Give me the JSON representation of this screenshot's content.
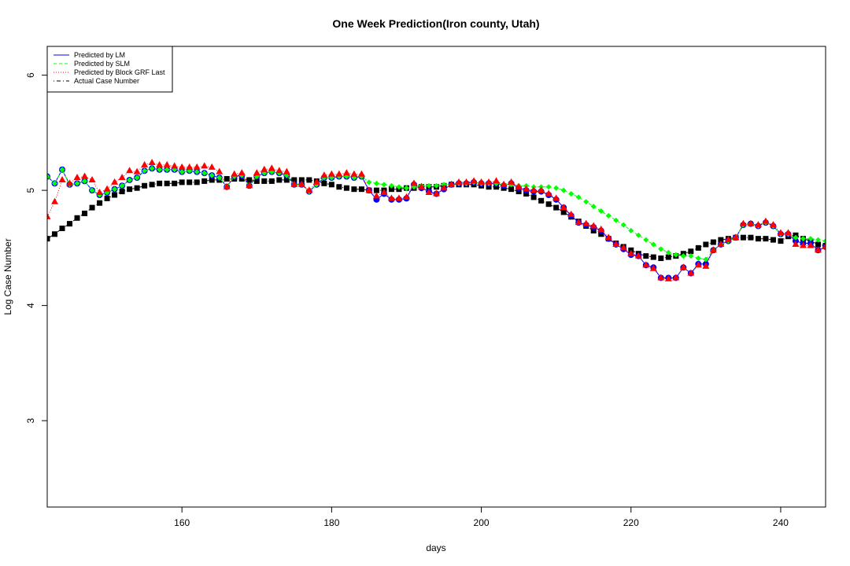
{
  "chart_data": {
    "type": "line",
    "title": "One Week Prediction(Iron county, Utah)",
    "xlabel": "days",
    "ylabel": "Log Case Number",
    "xlim": [
      142,
      246
    ],
    "ylim": [
      2.25,
      6.25
    ],
    "x_ticks": [
      160,
      180,
      200,
      220,
      240
    ],
    "y_ticks": [
      3,
      4,
      5,
      6
    ],
    "x_tick_labels": [
      "160",
      "180",
      "200",
      "220",
      "240"
    ],
    "y_tick_labels": [
      "3",
      "4",
      "5",
      "6"
    ],
    "legend_position": "top-left",
    "x_start": 142,
    "series": [
      {
        "name": "Predicted by LM",
        "color": "#0000ff",
        "marker": "circle",
        "line": "solid",
        "values": [
          5.12,
          5.06,
          5.18,
          5.05,
          5.06,
          5.08,
          5.0,
          4.96,
          4.98,
          5.01,
          5.04,
          5.09,
          5.11,
          5.17,
          5.19,
          5.18,
          5.18,
          5.18,
          5.16,
          5.17,
          5.16,
          5.15,
          5.13,
          5.11,
          5.03,
          5.12,
          5.13,
          5.04,
          5.12,
          5.15,
          5.16,
          5.15,
          5.13,
          5.05,
          5.05,
          4.99,
          5.05,
          5.11,
          5.11,
          5.12,
          5.12,
          5.11,
          5.12,
          5.0,
          4.92,
          4.97,
          4.92,
          4.92,
          4.93,
          5.05,
          5.02,
          4.99,
          4.97,
          5.01,
          5.05,
          5.06,
          5.06,
          5.07,
          5.06,
          5.06,
          5.06,
          5.04,
          5.06,
          5.02,
          5.0,
          4.99,
          4.99,
          4.96,
          4.92,
          4.85,
          4.78,
          4.72,
          4.7,
          4.68,
          4.65,
          4.58,
          4.53,
          4.49,
          4.44,
          4.43,
          4.35,
          4.33,
          4.24,
          4.24,
          4.24,
          4.33,
          4.28,
          4.36,
          4.36,
          4.48,
          4.53,
          4.56,
          4.59,
          4.7,
          4.71,
          4.69,
          4.72,
          4.69,
          4.62,
          4.62,
          4.56,
          4.54,
          4.54,
          4.48,
          4.51
        ]
      },
      {
        "name": "Predicted by SLM",
        "color": "#00ff00",
        "marker": "diamond",
        "line": "dashed",
        "values": [
          5.12,
          5.06,
          5.18,
          5.05,
          5.06,
          5.08,
          5.0,
          4.96,
          4.98,
          5.01,
          5.04,
          5.09,
          5.11,
          5.17,
          5.19,
          5.18,
          5.18,
          5.18,
          5.16,
          5.17,
          5.16,
          5.15,
          5.13,
          5.11,
          5.03,
          5.12,
          5.13,
          5.04,
          5.12,
          5.15,
          5.16,
          5.15,
          5.13,
          5.05,
          5.05,
          4.99,
          5.05,
          5.11,
          5.11,
          5.12,
          5.12,
          5.11,
          5.12,
          5.07,
          5.06,
          5.05,
          5.04,
          5.03,
          5.02,
          5.03,
          5.04,
          5.04,
          5.04,
          5.05,
          5.05,
          5.06,
          5.06,
          5.07,
          5.06,
          5.06,
          5.06,
          5.05,
          5.05,
          5.04,
          5.04,
          5.03,
          5.03,
          5.03,
          5.02,
          5.0,
          4.97,
          4.94,
          4.9,
          4.86,
          4.82,
          4.78,
          4.74,
          4.7,
          4.65,
          4.61,
          4.57,
          4.53,
          4.49,
          4.46,
          4.44,
          4.43,
          4.43,
          4.41,
          4.4,
          4.48,
          4.53,
          4.56,
          4.59,
          4.7,
          4.71,
          4.69,
          4.72,
          4.69,
          4.62,
          4.62,
          4.59,
          4.58,
          4.58,
          4.57,
          4.56
        ]
      },
      {
        "name": "Predicted by Block GRF Last",
        "color": "#ff0000",
        "marker": "triangle",
        "line": "dotted",
        "values": [
          4.77,
          4.9,
          5.09,
          5.06,
          5.11,
          5.12,
          5.09,
          4.98,
          5.01,
          5.07,
          5.11,
          5.17,
          5.16,
          5.22,
          5.24,
          5.22,
          5.22,
          5.21,
          5.2,
          5.2,
          5.2,
          5.21,
          5.2,
          5.16,
          5.03,
          5.14,
          5.15,
          5.04,
          5.15,
          5.18,
          5.19,
          5.17,
          5.16,
          5.05,
          5.05,
          5.0,
          5.07,
          5.13,
          5.14,
          5.14,
          5.15,
          5.14,
          5.14,
          5.0,
          4.95,
          4.98,
          4.93,
          4.93,
          4.94,
          5.06,
          5.03,
          4.98,
          4.97,
          5.02,
          5.05,
          5.07,
          5.07,
          5.08,
          5.07,
          5.07,
          5.08,
          5.05,
          5.07,
          5.03,
          5.01,
          5.0,
          5.0,
          4.97,
          4.93,
          4.85,
          4.79,
          4.72,
          4.71,
          4.69,
          4.66,
          4.59,
          4.53,
          4.5,
          4.45,
          4.43,
          4.35,
          4.32,
          4.24,
          4.23,
          4.24,
          4.33,
          4.28,
          4.35,
          4.34,
          4.48,
          4.53,
          4.57,
          4.59,
          4.71,
          4.71,
          4.7,
          4.73,
          4.7,
          4.63,
          4.63,
          4.53,
          4.52,
          4.52,
          4.48,
          4.51
        ]
      },
      {
        "name": "Actual Case Number",
        "color": "#000000",
        "marker": "square",
        "line": "dotdash",
        "values": [
          4.58,
          4.62,
          4.67,
          4.71,
          4.76,
          4.8,
          4.85,
          4.89,
          4.93,
          4.96,
          4.99,
          5.01,
          5.02,
          5.04,
          5.05,
          5.06,
          5.06,
          5.06,
          5.07,
          5.07,
          5.07,
          5.08,
          5.09,
          5.09,
          5.1,
          5.1,
          5.1,
          5.09,
          5.08,
          5.08,
          5.08,
          5.09,
          5.09,
          5.09,
          5.09,
          5.09,
          5.08,
          5.06,
          5.05,
          5.03,
          5.02,
          5.01,
          5.01,
          5.0,
          5.0,
          5.0,
          5.01,
          5.01,
          5.02,
          5.02,
          5.03,
          5.03,
          5.03,
          5.04,
          5.05,
          5.05,
          5.05,
          5.05,
          5.04,
          5.03,
          5.03,
          5.02,
          5.01,
          4.99,
          4.97,
          4.94,
          4.91,
          4.88,
          4.85,
          4.81,
          4.77,
          4.73,
          4.69,
          4.65,
          4.62,
          4.58,
          4.54,
          4.51,
          4.48,
          4.45,
          4.43,
          4.42,
          4.41,
          4.42,
          4.43,
          4.45,
          4.47,
          4.5,
          4.53,
          4.55,
          4.57,
          4.58,
          4.59,
          4.59,
          4.59,
          4.58,
          4.58,
          4.57,
          4.56,
          4.6,
          4.61,
          4.58,
          4.56,
          4.53,
          4.52
        ]
      }
    ]
  }
}
